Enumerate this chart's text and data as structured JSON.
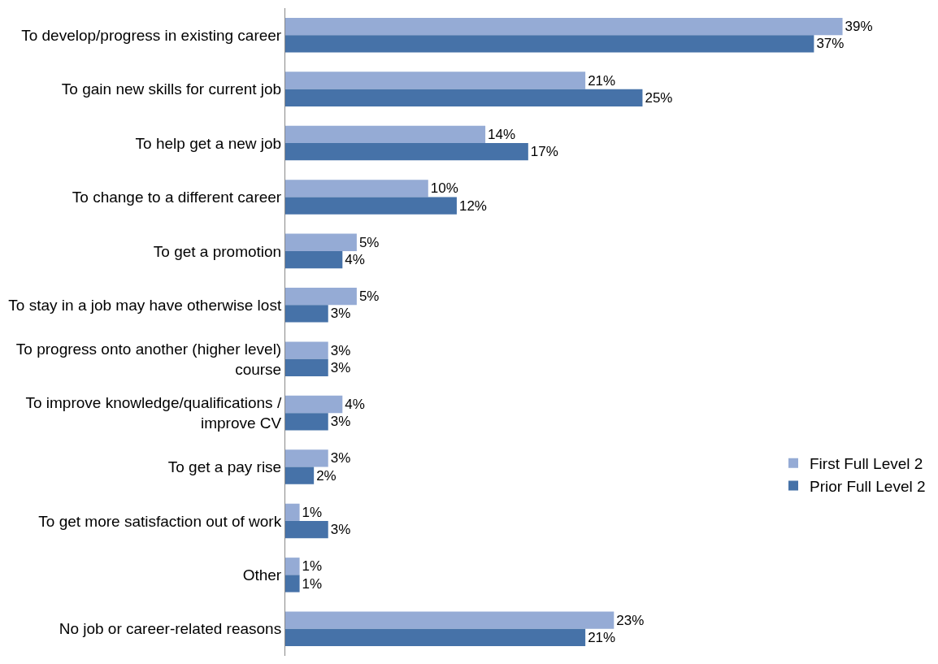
{
  "chart_data": {
    "type": "bar",
    "orientation": "horizontal",
    "legend": "right",
    "categories": [
      "To develop/progress in existing career",
      "To gain new skills for current job",
      "To help get a new job",
      "To change to a different career",
      "To get a promotion",
      "To stay in a job may have otherwise lost",
      "To progress onto another (higher level) course",
      "To improve knowledge/qualifications / improve CV",
      "To get a pay rise",
      "To get more satisfaction out of work",
      "Other",
      "No job or career-related reasons"
    ],
    "series": [
      {
        "name": "First Full Level 2",
        "color": "#95abd5",
        "values": [
          39,
          21,
          14,
          10,
          5,
          5,
          3,
          4,
          3,
          1,
          1,
          23
        ],
        "value_labels": [
          "39%",
          "21%",
          "14%",
          "10%",
          "5%",
          "5%",
          "3%",
          "4%",
          "3%",
          "1%",
          "1%",
          "23%"
        ]
      },
      {
        "name": "Prior Full Level 2",
        "color": "#4672a8",
        "values": [
          37,
          25,
          17,
          12,
          4,
          3,
          3,
          3,
          2,
          3,
          1,
          21
        ],
        "value_labels": [
          "37%",
          "25%",
          "17%",
          "12%",
          "4%",
          "3%",
          "3%",
          "3%",
          "2%",
          "3%",
          "1%",
          "21%"
        ]
      }
    ]
  }
}
